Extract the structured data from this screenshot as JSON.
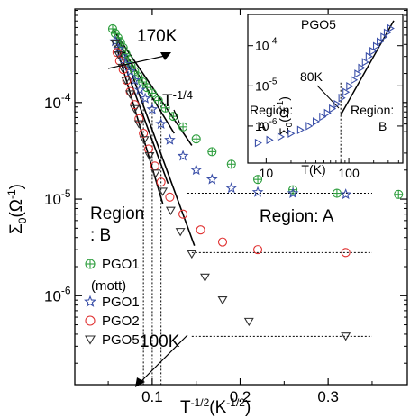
{
  "chart_data": {
    "type": "scatter",
    "x_scale": "linear",
    "y_scale": "log",
    "xlim": [
      0.012,
      0.39
    ],
    "ylim": [
      1.2e-07,
      0.00093
    ],
    "xticks": [
      0.1,
      0.2,
      0.3
    ],
    "xtick_labels": [
      "0.1",
      "0.2",
      "0.3"
    ],
    "yticks": [
      1e-06,
      1e-05,
      0.0001
    ],
    "ytick_labels": [
      "10",
      "10",
      "10"
    ],
    "ytick_exponents": [
      "-6",
      "-5",
      "-4"
    ],
    "xlabel": "T",
    "xlabel_sup": "-1/2",
    "xlabel_unit": "(K",
    "xlabel_unit_sup": "-1/2",
    "xlabel_close": ")",
    "ylabel": "Σ",
    "ylabel_sub": "0",
    "ylabel_unit": "(Ω",
    "ylabel_unit_sup": "-1",
    "ylabel_close": ")",
    "legend_position": "bottom-left",
    "annotations": {
      "t170": "170K",
      "t100": "100K",
      "tpow": "T",
      "tpow_sup": "-1/4",
      "region_a": "Region: A",
      "region_b_line1": "Region",
      "region_b_line2": ": B"
    },
    "vlines_x": [
      0.09,
      0.1,
      0.11
    ],
    "plateaus": [
      {
        "y": 1.15e-05,
        "x_start": 0.14,
        "x_end": 0.35
      },
      {
        "y": 2.8e-06,
        "x_start": 0.145,
        "x_end": 0.35
      },
      {
        "y": 3.8e-07,
        "x_start": 0.145,
        "x_end": 0.35
      }
    ],
    "series": [
      {
        "name": "PGO1",
        "name_line2": "(mott)",
        "marker": "circle-plus",
        "color": "#2e9e3e",
        "x": [
          0.055,
          0.058,
          0.061,
          0.064,
          0.067,
          0.07,
          0.073,
          0.076,
          0.08,
          0.084,
          0.089,
          0.094,
          0.1,
          0.107,
          0.115,
          0.124,
          0.135,
          0.15,
          0.168,
          0.19,
          0.22,
          0.26,
          0.31,
          0.38
        ],
        "y": [
          0.00058,
          0.00052,
          0.00047,
          0.00042,
          0.00037,
          0.00032,
          0.00028,
          0.00024,
          0.00021,
          0.000185,
          0.000163,
          0.000143,
          0.000125,
          0.000105,
          8.8e-05,
          7.2e-05,
          5.6e-05,
          4.2e-05,
          3.1e-05,
          2.3e-05,
          1.6e-05,
          1.25e-05,
          1.15e-05,
          1.12e-05
        ]
      },
      {
        "name": "PGO1",
        "marker": "star",
        "color": "#3a4fa8",
        "x": [
          0.058,
          0.062,
          0.066,
          0.07,
          0.075,
          0.08,
          0.086,
          0.092,
          0.1,
          0.11,
          0.12,
          0.135,
          0.15,
          0.168,
          0.19,
          0.22,
          0.26,
          0.32
        ],
        "y": [
          0.00043,
          0.00036,
          0.0003,
          0.00025,
          0.00021,
          0.00017,
          0.000135,
          0.00011,
          8.5e-05,
          6e-05,
          4.1e-05,
          2.8e-05,
          2e-05,
          1.6e-05,
          1.3e-05,
          1.18e-05,
          1.15e-05,
          1.12e-05
        ]
      },
      {
        "name": "PGO2",
        "marker": "circle-open",
        "color": "#e03030",
        "x": [
          0.06,
          0.063,
          0.067,
          0.071,
          0.075,
          0.08,
          0.085,
          0.09,
          0.096,
          0.103,
          0.11,
          0.12,
          0.135,
          0.155,
          0.18,
          0.22,
          0.32
        ],
        "y": [
          0.00033,
          0.00027,
          0.00022,
          0.00017,
          0.00013,
          9.5e-05,
          6.8e-05,
          4.8e-05,
          3.3e-05,
          2.2e-05,
          1.5e-05,
          1.05e-05,
          7e-06,
          4.8e-06,
          3.6e-06,
          3e-06,
          2.8e-06
        ]
      },
      {
        "name": "PGO5",
        "marker": "triangle-down",
        "color": "#303030",
        "x": [
          0.058,
          0.062,
          0.066,
          0.07,
          0.075,
          0.08,
          0.085,
          0.091,
          0.097,
          0.104,
          0.112,
          0.121,
          0.132,
          0.145,
          0.16,
          0.18,
          0.21,
          0.32
        ],
        "y": [
          0.00041,
          0.00031,
          0.00023,
          0.00017,
          0.000122,
          8.6e-05,
          6e-05,
          4.1e-05,
          2.8e-05,
          1.85e-05,
          1.2e-05,
          7.6e-06,
          4.6e-06,
          2.7e-06,
          1.55e-06,
          9e-07,
          5.4e-07,
          3.8e-07
        ]
      }
    ],
    "fit_lines": [
      {
        "x": [
          0.055,
          0.145
        ],
        "y": [
          0.00058,
          3.6e-05
        ]
      },
      {
        "x": [
          0.058,
          0.125
        ],
        "y": [
          0.00048,
          4.8e-05
        ]
      },
      {
        "x": [
          0.06,
          0.118
        ],
        "y": [
          0.0004,
          1.45e-05
        ]
      },
      {
        "x": [
          0.06,
          0.112
        ],
        "y": [
          0.00036,
          9e-06
        ]
      },
      {
        "x": [
          0.06,
          0.148
        ],
        "y": [
          0.00052,
          3.3e-06
        ]
      }
    ],
    "inset": {
      "title": "PGO5",
      "x_scale": "log",
      "y_scale": "log",
      "xlim": [
        6,
        450
      ],
      "ylim": [
        1.2e-07,
        0.0006
      ],
      "xticks": [
        10,
        100
      ],
      "xtick_labels": [
        "10",
        "100"
      ],
      "yticks": [
        1e-06,
        1e-05,
        0.0001
      ],
      "ytick_labels": [
        "10",
        "10",
        "10"
      ],
      "ytick_exponents": [
        "-6",
        "-5",
        "-4"
      ],
      "xlabel": "T(K)",
      "ylabel": "Σ",
      "ylabel_sub": "0",
      "ylabel_unit": "(Ω",
      "ylabel_unit_sup": "-1",
      "ylabel_close": ")",
      "annotation_80k": "80K",
      "region_a_line1": "Region:",
      "region_a_line2": "A",
      "region_b_line1": "Region:",
      "region_b_line2": "B",
      "vline_x": 80,
      "marker": "triangle-right",
      "color": "#3a4fa8",
      "x": [
        8,
        11,
        15,
        20,
        26,
        33,
        40,
        48,
        55,
        63,
        72,
        82,
        92,
        102,
        115,
        128,
        142,
        158,
        175,
        195,
        215,
        238,
        265,
        290,
        320
      ],
      "y": [
        3.8e-07,
        4.5e-07,
        5.4e-07,
        6.5e-07,
        8e-07,
        1e-06,
        1.3e-06,
        1.7e-06,
        2.1e-06,
        2.7e-06,
        3.5e-06,
        5e-06,
        7e-06,
        9.8e-06,
        1.4e-05,
        2e-05,
        2.8e-05,
        3.9e-05,
        5.4e-05,
        7.3e-05,
        9.7e-05,
        0.000126,
        0.000165,
        0.00021,
        0.00027
      ],
      "fit_line": {
        "x": [
          80,
          350
        ],
        "y": [
          1.9e-06,
          0.00042
        ]
      }
    }
  }
}
